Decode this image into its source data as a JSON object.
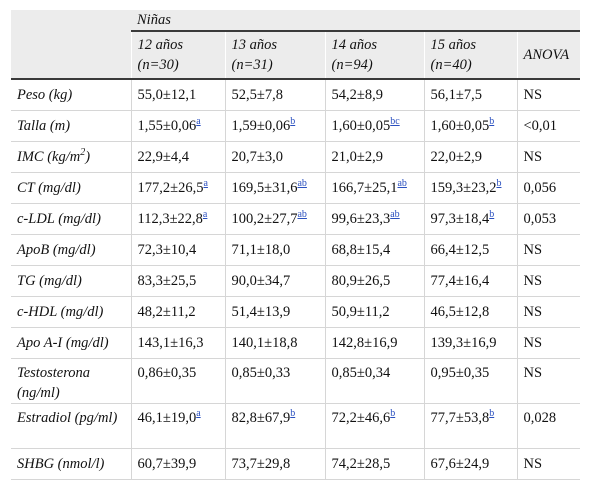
{
  "header": {
    "group_label": "Niñas",
    "columns": [
      {
        "line1": "12 años",
        "line2": "(n=30)"
      },
      {
        "line1": "13 años",
        "line2": "(n=31)"
      },
      {
        "line1": "14 años",
        "line2": "(n=94)"
      },
      {
        "line1": "15 años",
        "line2": "(n=40)"
      },
      {
        "line1": "ANOVA",
        "line2": ""
      }
    ]
  },
  "rows": [
    {
      "label": "Peso (kg)",
      "cells": [
        {
          "v": "55,0±12,1",
          "s": ""
        },
        {
          "v": "52,5±7,8",
          "s": ""
        },
        {
          "v": "54,2±8,9",
          "s": ""
        },
        {
          "v": "56,1±7,5",
          "s": ""
        }
      ],
      "anova": "NS"
    },
    {
      "label": "Talla (m)",
      "cells": [
        {
          "v": "1,55±0,06",
          "s": "a"
        },
        {
          "v": "1,59±0,06",
          "s": "b"
        },
        {
          "v": "1,60±0,05",
          "s": "bc"
        },
        {
          "v": "1,60±0,05",
          "s": "b"
        }
      ],
      "anova": "<0,01"
    },
    {
      "label": "IMC (kg/m",
      "label_sup": "2",
      "label_end": ")",
      "cells": [
        {
          "v": "22,9±4,4",
          "s": ""
        },
        {
          "v": "20,7±3,0",
          "s": ""
        },
        {
          "v": "21,0±2,9",
          "s": ""
        },
        {
          "v": "22,0±2,9",
          "s": ""
        }
      ],
      "anova": "NS"
    },
    {
      "label": "CT (mg/dl)",
      "cells": [
        {
          "v": "177,2±26,5",
          "s": "a"
        },
        {
          "v": "169,5±31,6",
          "s": "ab"
        },
        {
          "v": "166,7±25,1",
          "s": "ab"
        },
        {
          "v": "159,3±23,2",
          "s": "b"
        }
      ],
      "anova": "0,056"
    },
    {
      "label": "c-LDL (mg/dl)",
      "cells": [
        {
          "v": "112,3±22,8",
          "s": "a"
        },
        {
          "v": "100,2±27,7",
          "s": "ab"
        },
        {
          "v": "99,6±23,3",
          "s": "ab"
        },
        {
          "v": "97,3±18,4",
          "s": "b"
        }
      ],
      "anova": "0,053"
    },
    {
      "label": "ApoB (mg/dl)",
      "cells": [
        {
          "v": "72,3±10,4",
          "s": ""
        },
        {
          "v": "71,1±18,0",
          "s": ""
        },
        {
          "v": "68,8±15,4",
          "s": ""
        },
        {
          "v": "66,4±12,5",
          "s": ""
        }
      ],
      "anova": "NS"
    },
    {
      "label": "TG (mg/dl)",
      "cells": [
        {
          "v": "83,3±25,5",
          "s": ""
        },
        {
          "v": "90,0±34,7",
          "s": ""
        },
        {
          "v": "80,9±26,5",
          "s": ""
        },
        {
          "v": "77,4±16,4",
          "s": ""
        }
      ],
      "anova": "NS"
    },
    {
      "label": "c-HDL (mg/dl)",
      "cells": [
        {
          "v": "48,2±11,2",
          "s": ""
        },
        {
          "v": "51,4±13,9",
          "s": ""
        },
        {
          "v": "50,9±11,2",
          "s": ""
        },
        {
          "v": "46,5±12,8",
          "s": ""
        }
      ],
      "anova": "NS"
    },
    {
      "label": "Apo A-I (mg/dl)",
      "cells": [
        {
          "v": "143,1±16,3",
          "s": ""
        },
        {
          "v": "140,1±18,8",
          "s": ""
        },
        {
          "v": "142,8±16,9",
          "s": ""
        },
        {
          "v": "139,3±16,9",
          "s": ""
        }
      ],
      "anova": "NS"
    },
    {
      "label": "Testosterona (ng/ml)",
      "cells": [
        {
          "v": "0,86±0,35",
          "s": ""
        },
        {
          "v": "0,85±0,33",
          "s": ""
        },
        {
          "v": "0,85±0,34",
          "s": ""
        },
        {
          "v": "0,95±0,35",
          "s": ""
        }
      ],
      "anova": "NS"
    },
    {
      "label": "Estradiol (pg/ml)",
      "cells": [
        {
          "v": "46,1±19,0",
          "s": "a"
        },
        {
          "v": "82,8±67,9",
          "s": "b"
        },
        {
          "v": "72,2±46,6",
          "s": "b"
        },
        {
          "v": "77,7±53,8",
          "s": "b"
        }
      ],
      "anova": "0,028"
    },
    {
      "label": "SHBG (nmol/l)",
      "cells": [
        {
          "v": "60,7±39,9",
          "s": ""
        },
        {
          "v": "73,7±29,8",
          "s": ""
        },
        {
          "v": "74,2±28,5",
          "s": ""
        },
        {
          "v": "67,6±24,9",
          "s": ""
        }
      ],
      "anova": "NS"
    }
  ]
}
